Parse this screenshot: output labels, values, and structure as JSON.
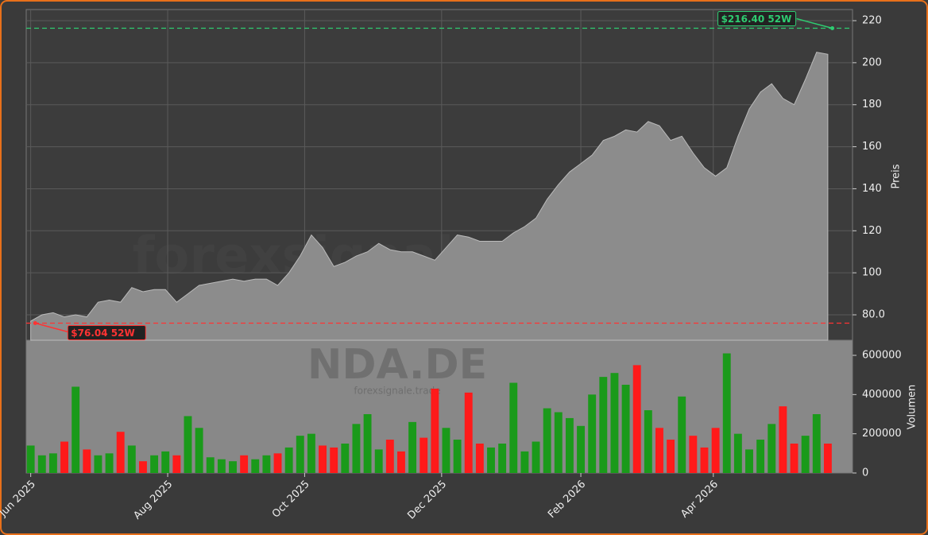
{
  "chart_data": [
    {
      "type": "area",
      "ylabel": "Preis",
      "watermark": "forexsignale.trade",
      "x": [
        0,
        5,
        10,
        15,
        20,
        25,
        30,
        35,
        40,
        45,
        50,
        55,
        60,
        65,
        70,
        75,
        80,
        85,
        90,
        95,
        100,
        105,
        110,
        115,
        120,
        125,
        130,
        135,
        140,
        145,
        150,
        155,
        160,
        165,
        170,
        175,
        180,
        185,
        190,
        195,
        200,
        205,
        210,
        215,
        220,
        225,
        230,
        235,
        240,
        245,
        250,
        255,
        260,
        265,
        270,
        275,
        280,
        285,
        290,
        295,
        300,
        305,
        310,
        315,
        320,
        325,
        330,
        335,
        340,
        345,
        350,
        355
      ],
      "values": [
        77,
        80,
        81,
        79,
        80,
        79,
        86,
        87,
        86,
        93,
        91,
        92,
        92,
        86,
        90,
        94,
        95,
        96,
        97,
        96,
        97,
        97,
        94,
        100,
        108,
        118,
        112,
        103,
        105,
        108,
        110,
        114,
        111,
        110,
        110,
        108,
        106,
        112,
        118,
        117,
        115,
        115,
        115,
        119,
        122,
        126,
        135,
        142,
        148,
        152,
        156,
        163,
        165,
        168,
        167,
        172,
        170,
        163,
        165,
        157,
        150,
        146,
        150,
        165,
        178,
        186,
        190,
        183,
        180,
        192,
        205,
        204
      ],
      "color": "#8c8c8c",
      "xlim": [
        -2,
        366
      ],
      "ylim": [
        67.9,
        225.3
      ],
      "yticks": [
        {
          "value": 80,
          "label": "80.0"
        },
        100,
        120,
        140,
        160,
        180,
        200,
        220
      ],
      "grid": true,
      "annotations": [
        {
          "text": "$216.40 52W",
          "x": 357,
          "y": 216.4,
          "color": "#2ecc71"
        },
        {
          "text": "$76.04 52W",
          "x": 2,
          "y": 76.04,
          "color": "#ff3333"
        }
      ]
    },
    {
      "type": "bar",
      "ylabel": "Volumen",
      "watermark": "NDA.DE",
      "watermark_small": "forexsignale.trade",
      "x": [
        0,
        5,
        10,
        15,
        20,
        25,
        30,
        35,
        40,
        45,
        50,
        55,
        60,
        65,
        70,
        75,
        80,
        85,
        90,
        95,
        100,
        105,
        110,
        115,
        120,
        125,
        130,
        135,
        140,
        145,
        150,
        155,
        160,
        165,
        170,
        175,
        180,
        185,
        190,
        195,
        200,
        205,
        210,
        215,
        220,
        225,
        230,
        235,
        240,
        245,
        250,
        255,
        260,
        265,
        270,
        275,
        280,
        285,
        290,
        295,
        300,
        305,
        310,
        315,
        320,
        325,
        330,
        335,
        340,
        345,
        350,
        355
      ],
      "values": [
        140000,
        90000,
        100000,
        160000,
        440000,
        120000,
        90000,
        100000,
        210000,
        140000,
        60000,
        90000,
        110000,
        90000,
        290000,
        230000,
        80000,
        70000,
        60000,
        90000,
        70000,
        90000,
        100000,
        130000,
        190000,
        200000,
        140000,
        130000,
        150000,
        250000,
        300000,
        120000,
        170000,
        110000,
        260000,
        180000,
        430000,
        230000,
        170000,
        410000,
        150000,
        130000,
        150000,
        460000,
        110000,
        160000,
        330000,
        310000,
        280000,
        240000,
        400000,
        490000,
        510000,
        450000,
        550000,
        320000,
        230000,
        170000,
        390000,
        190000,
        130000,
        230000,
        610000,
        200000,
        120000,
        170000,
        250000,
        340000,
        150000,
        190000,
        300000,
        150000
      ],
      "up_color": "#1a9a1a",
      "down_color": "#ff1a1a",
      "xlim": [
        -2,
        366
      ],
      "ylim": [
        0,
        677000
      ],
      "yticks": [
        0,
        200000,
        400000,
        600000
      ],
      "xticks": [
        {
          "value": 0,
          "label": "Jun 2025"
        },
        {
          "value": 61,
          "label": "Aug 2025"
        },
        {
          "value": 122,
          "label": "Oct 2025"
        },
        {
          "value": 183,
          "label": "Dec 2025"
        },
        {
          "value": 245,
          "label": "Feb 2026"
        },
        {
          "value": 304,
          "label": "Apr 2026"
        }
      ]
    }
  ]
}
